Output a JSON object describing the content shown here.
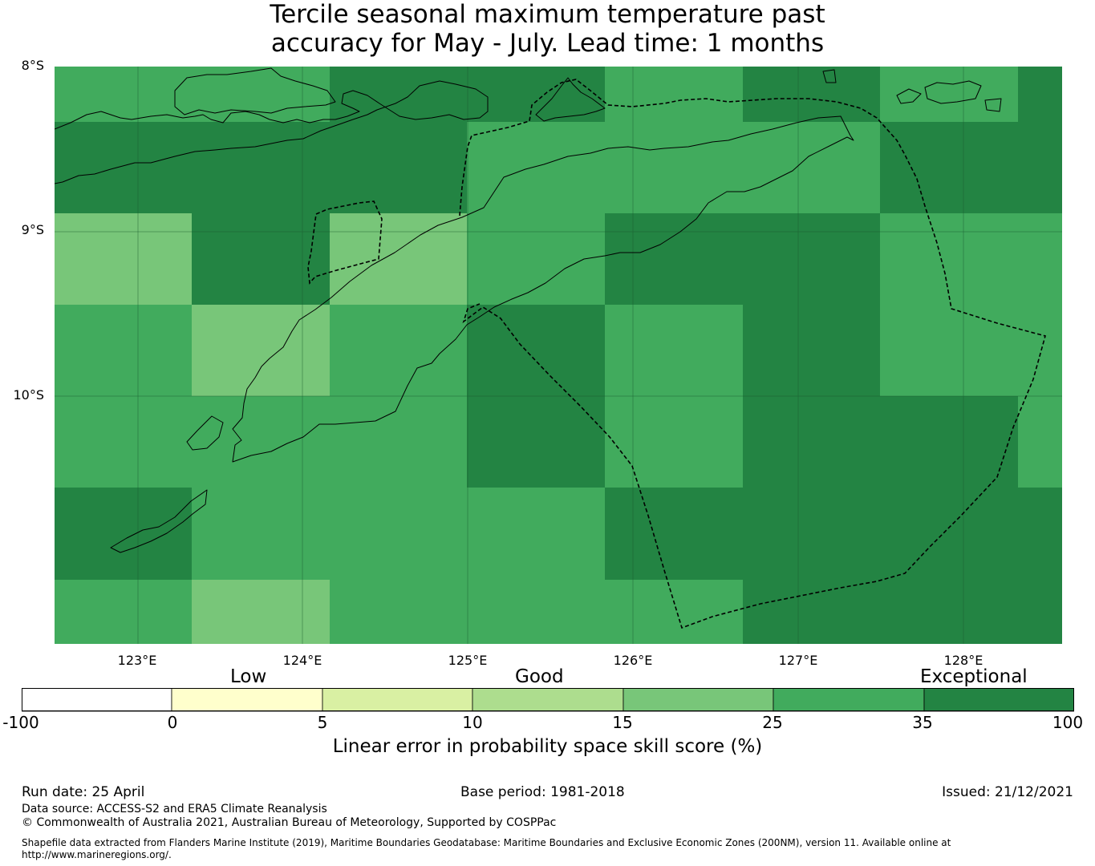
{
  "title_line1": "Tercile seasonal maximum temperature past",
  "title_line2": "accuracy for May - July. Lead time: 1 months",
  "lat_labels": [
    "8°S",
    "9°S",
    "10°S"
  ],
  "lon_labels": [
    "123°E",
    "124°E",
    "125°E",
    "126°E",
    "127°E",
    "128°E"
  ],
  "colors": {
    "c0": "#ffffff",
    "c1": "#ffffcc",
    "c2": "#d9f0a3",
    "c3": "#addd8e",
    "c4": "#78c679",
    "c5": "#41ab5d",
    "c6": "#238443"
  },
  "chart_data": {
    "type": "heatmap",
    "lon_range": [
      122.5,
      128.6
    ],
    "lat_range": [
      -11.5,
      -8.0
    ],
    "cell_size_deg": 0.833,
    "legend_categories": [
      "Low",
      "Good",
      "Exceptional"
    ],
    "colorbar_bins": [
      {
        "from": -100,
        "to": 0,
        "color": "#ffffff"
      },
      {
        "from": 0,
        "to": 5,
        "color": "#ffffcc"
      },
      {
        "from": 5,
        "to": 10,
        "color": "#d9f0a3"
      },
      {
        "from": 10,
        "to": 15,
        "color": "#addd8e"
      },
      {
        "from": 15,
        "to": 25,
        "color": "#78c679"
      },
      {
        "from": 25,
        "to": 35,
        "color": "#41ab5d"
      },
      {
        "from": 35,
        "to": 100,
        "color": "#238443"
      }
    ],
    "colorbar_ticks": [
      "-100",
      "0",
      "5",
      "10",
      "15",
      "25",
      "35",
      "100"
    ],
    "colorbar_label": "Linear error in probability space skill score (%)",
    "grid_rows_north_to_south": [
      [
        "c5",
        "c5",
        "c6",
        "c6",
        "c5",
        "c6",
        "c5",
        "c6"
      ],
      [
        "c6",
        "c6",
        "c6",
        "c5",
        "c5",
        "c5",
        "c6",
        "c6"
      ],
      [
        "c4",
        "c6",
        "c4",
        "c5",
        "c6",
        "c6",
        "c5",
        "c5"
      ],
      [
        "c5",
        "c4",
        "c5",
        "c6",
        "c5",
        "c6",
        "c5",
        "c5"
      ],
      [
        "c5",
        "c5",
        "c5",
        "c6",
        "c5",
        "c6",
        "c6",
        "c5"
      ],
      [
        "c6",
        "c5",
        "c5",
        "c5",
        "c6",
        "c6",
        "c6",
        "c6"
      ],
      [
        "c5",
        "c4",
        "c5",
        "c5",
        "c5",
        "c6",
        "c6",
        "c6"
      ]
    ]
  },
  "footer": {
    "run_date": "Run date: 25 April",
    "base_period": "Base period: 1981-2018",
    "issued": "Issued: 21/12/2021",
    "data_source": "Data source: ACCESS-S2 and ERA5 Climate Reanalysis",
    "copyright": "© Commonwealth of Australia 2021, Australian Bureau of Meteorology, Supported by COSPPac",
    "shapefile_line1": "Shapefile data extracted from Flanders Marine Institute (2019), Maritime Boundaries Geodatabase: Maritime Boundaries and Exclusive Economic Zones (200NM), version 11. Available online at",
    "shapefile_line2": "http://www.marineregions.org/."
  }
}
